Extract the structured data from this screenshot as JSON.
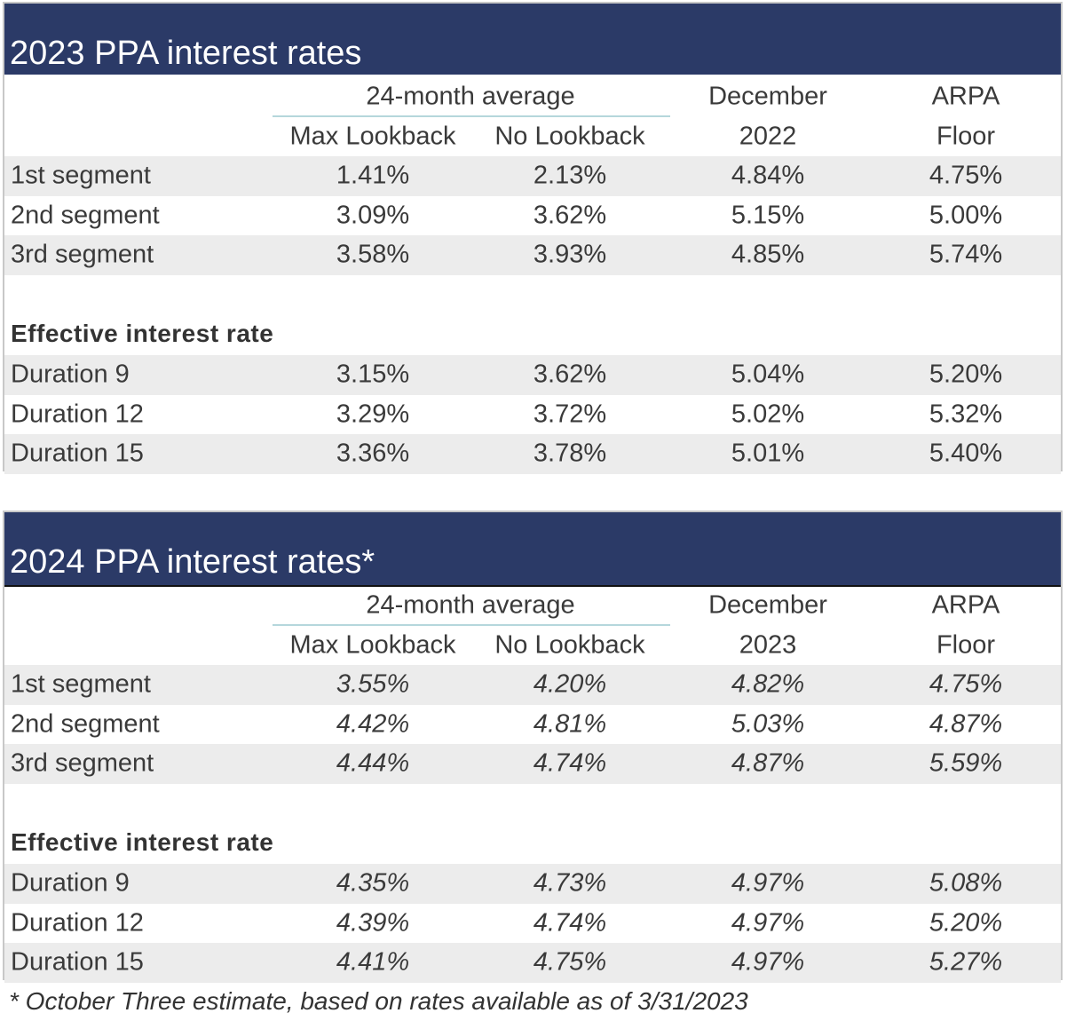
{
  "tables": [
    {
      "title": "2023 PPA interest rates",
      "header_top": [
        "24-month average",
        "December",
        "ARPA"
      ],
      "header_bottom": [
        "Max Lookback",
        "No Lookback",
        "2022",
        "Floor"
      ],
      "rows": [
        [
          "1st segment",
          "1.41%",
          "2.13%",
          "4.84%",
          "4.75%"
        ],
        [
          "2nd segment",
          "3.09%",
          "3.62%",
          "5.15%",
          "5.00%"
        ],
        [
          "3rd segment",
          "3.58%",
          "3.93%",
          "4.85%",
          "5.74%"
        ]
      ],
      "section": "Effective interest rate",
      "section_rows": [
        [
          "Duration 9",
          "3.15%",
          "3.62%",
          "5.04%",
          "5.20%"
        ],
        [
          "Duration 12",
          "3.29%",
          "3.72%",
          "5.02%",
          "5.32%"
        ],
        [
          "Duration 15",
          "3.36%",
          "3.78%",
          "5.01%",
          "5.40%"
        ]
      ]
    },
    {
      "title": "2024 PPA interest rates*",
      "header_top": [
        "24-month average",
        "December",
        "ARPA"
      ],
      "header_bottom": [
        "Max Lookback",
        "No Lookback",
        "2023",
        "Floor"
      ],
      "rows": [
        [
          "1st segment",
          "3.55%",
          "4.20%",
          "4.82%",
          "4.75%"
        ],
        [
          "2nd segment",
          "4.42%",
          "4.81%",
          "5.03%",
          "4.87%"
        ],
        [
          "3rd segment",
          "4.44%",
          "4.74%",
          "4.87%",
          "5.59%"
        ]
      ],
      "section": "Effective interest rate",
      "section_rows": [
        [
          "Duration 9",
          "4.35%",
          "4.73%",
          "4.97%",
          "5.08%"
        ],
        [
          "Duration 12",
          "4.39%",
          "4.74%",
          "4.97%",
          "5.20%"
        ],
        [
          "Duration 15",
          "4.41%",
          "4.75%",
          "4.97%",
          "5.27%"
        ]
      ]
    }
  ],
  "footnote": "* October Three estimate, based on rates available as of 3/31/2023"
}
